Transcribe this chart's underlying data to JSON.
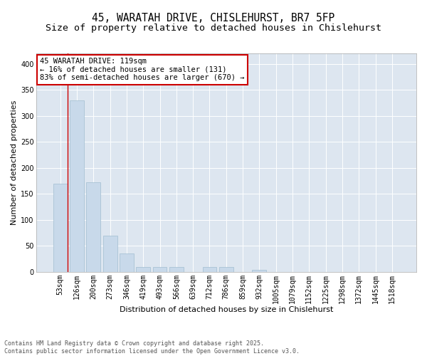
{
  "title_line1": "45, WARATAH DRIVE, CHISLEHURST, BR7 5FP",
  "title_line2": "Size of property relative to detached houses in Chislehurst",
  "xlabel": "Distribution of detached houses by size in Chislehurst",
  "ylabel": "Number of detached properties",
  "categories": [
    "53sqm",
    "126sqm",
    "200sqm",
    "273sqm",
    "346sqm",
    "419sqm",
    "493sqm",
    "566sqm",
    "639sqm",
    "712sqm",
    "786sqm",
    "859sqm",
    "932sqm",
    "1005sqm",
    "1079sqm",
    "1152sqm",
    "1225sqm",
    "1298sqm",
    "1372sqm",
    "1445sqm",
    "1518sqm"
  ],
  "values": [
    170,
    330,
    173,
    70,
    35,
    10,
    10,
    9,
    0,
    9,
    9,
    0,
    4,
    0,
    0,
    0,
    0,
    0,
    0,
    0,
    0
  ],
  "bar_color": "#c8d9ea",
  "bar_edge_color": "#a0bdd0",
  "vline_color": "#cc0000",
  "vline_x": 0.425,
  "annotation_text": "45 WARATAH DRIVE: 119sqm\n← 16% of detached houses are smaller (131)\n83% of semi-detached houses are larger (670) →",
  "annotation_box_facecolor": "#ffffff",
  "annotation_box_edgecolor": "#cc0000",
  "ylim": [
    0,
    420
  ],
  "yticks": [
    0,
    50,
    100,
    150,
    200,
    250,
    300,
    350,
    400
  ],
  "fig_facecolor": "#ffffff",
  "plot_facecolor": "#dde6f0",
  "grid_color": "#ffffff",
  "footer_line1": "Contains HM Land Registry data © Crown copyright and database right 2025.",
  "footer_line2": "Contains public sector information licensed under the Open Government Licence v3.0.",
  "title_fontsize": 10.5,
  "subtitle_fontsize": 9.5,
  "axis_label_fontsize": 8,
  "tick_fontsize": 7,
  "annotation_fontsize": 7.5,
  "footer_fontsize": 6
}
